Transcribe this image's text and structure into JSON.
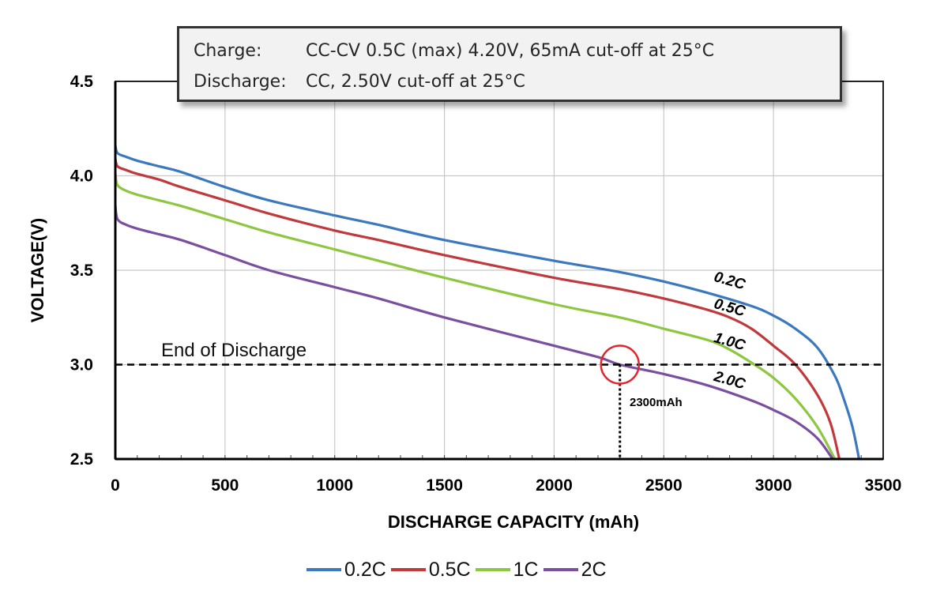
{
  "info_box": {
    "rows": [
      {
        "label": "Charge:",
        "text": "CC-CV 0.5C (max) 4.20V, 65mA cut-off at 25°C"
      },
      {
        "label": "Discharge:",
        "text": "CC, 2.50V cut-off at 25°C"
      }
    ]
  },
  "annotations": {
    "end_of_discharge": "End of Discharge",
    "marker_label": "2300mAh",
    "marker_x": 2300,
    "threshold_voltage": 3.0
  },
  "colors": {
    "0.2C": "#3a78c0",
    "0.5C": "#c0393b",
    "1C": "#8dc63f",
    "2C": "#7a4fa0",
    "marker": "#e0262e"
  },
  "chart_data": {
    "type": "line",
    "title": "",
    "xlabel": "DISCHARGE CAPACITY (mAh)",
    "ylabel": "VOLTAGE(V)",
    "xlim": [
      0,
      3500
    ],
    "ylim": [
      2.5,
      4.5
    ],
    "xticks": [
      "0",
      "500",
      "1000",
      "1500",
      "2000",
      "2500",
      "3000",
      "3500"
    ],
    "yticks": [
      "2.5",
      "3.0",
      "3.5",
      "4.0",
      "4.5"
    ],
    "grid": true,
    "legend_position": "bottom",
    "series": [
      {
        "name": "0.2C",
        "curve_label": "0.2C",
        "color": "#3a78c0",
        "points": [
          [
            0,
            4.16
          ],
          [
            10,
            4.12
          ],
          [
            50,
            4.1
          ],
          [
            100,
            4.08
          ],
          [
            200,
            4.05
          ],
          [
            300,
            4.02
          ],
          [
            500,
            3.94
          ],
          [
            700,
            3.87
          ],
          [
            1000,
            3.79
          ],
          [
            1200,
            3.74
          ],
          [
            1500,
            3.66
          ],
          [
            2000,
            3.55
          ],
          [
            2300,
            3.49
          ],
          [
            2500,
            3.44
          ],
          [
            2700,
            3.38
          ],
          [
            2900,
            3.31
          ],
          [
            3000,
            3.26
          ],
          [
            3100,
            3.19
          ],
          [
            3200,
            3.09
          ],
          [
            3280,
            2.94
          ],
          [
            3320,
            2.82
          ],
          [
            3360,
            2.67
          ],
          [
            3390,
            2.5
          ]
        ]
      },
      {
        "name": "0.5C",
        "curve_label": "0.5C",
        "color": "#c0393b",
        "points": [
          [
            0,
            4.09
          ],
          [
            10,
            4.05
          ],
          [
            50,
            4.03
          ],
          [
            100,
            4.01
          ],
          [
            200,
            3.98
          ],
          [
            300,
            3.94
          ],
          [
            500,
            3.87
          ],
          [
            700,
            3.8
          ],
          [
            1000,
            3.71
          ],
          [
            1200,
            3.66
          ],
          [
            1500,
            3.58
          ],
          [
            2000,
            3.46
          ],
          [
            2300,
            3.4
          ],
          [
            2500,
            3.35
          ],
          [
            2700,
            3.29
          ],
          [
            2800,
            3.25
          ],
          [
            2900,
            3.19
          ],
          [
            3000,
            3.1
          ],
          [
            3100,
            3.0
          ],
          [
            3200,
            2.84
          ],
          [
            3260,
            2.69
          ],
          [
            3300,
            2.5
          ]
        ]
      },
      {
        "name": "1C",
        "curve_label": "1.0C",
        "color": "#8dc63f",
        "points": [
          [
            0,
            4.01
          ],
          [
            10,
            3.95
          ],
          [
            50,
            3.92
          ],
          [
            100,
            3.9
          ],
          [
            200,
            3.87
          ],
          [
            300,
            3.84
          ],
          [
            500,
            3.77
          ],
          [
            700,
            3.7
          ],
          [
            1000,
            3.61
          ],
          [
            1200,
            3.55
          ],
          [
            1500,
            3.46
          ],
          [
            2000,
            3.32
          ],
          [
            2300,
            3.25
          ],
          [
            2500,
            3.19
          ],
          [
            2700,
            3.13
          ],
          [
            2800,
            3.08
          ],
          [
            2900,
            3.01
          ],
          [
            3000,
            2.93
          ],
          [
            3100,
            2.82
          ],
          [
            3200,
            2.67
          ],
          [
            3280,
            2.5
          ]
        ]
      },
      {
        "name": "2C",
        "curve_label": "2.0C",
        "color": "#7a4fa0",
        "points": [
          [
            0,
            3.84
          ],
          [
            10,
            3.77
          ],
          [
            50,
            3.74
          ],
          [
            100,
            3.72
          ],
          [
            200,
            3.69
          ],
          [
            300,
            3.66
          ],
          [
            500,
            3.58
          ],
          [
            700,
            3.5
          ],
          [
            1000,
            3.41
          ],
          [
            1200,
            3.35
          ],
          [
            1500,
            3.25
          ],
          [
            2000,
            3.1
          ],
          [
            2200,
            3.04
          ],
          [
            2300,
            3.0
          ],
          [
            2500,
            2.95
          ],
          [
            2700,
            2.89
          ],
          [
            2900,
            2.81
          ],
          [
            3000,
            2.76
          ],
          [
            3100,
            2.7
          ],
          [
            3200,
            2.61
          ],
          [
            3270,
            2.5
          ]
        ]
      }
    ]
  }
}
